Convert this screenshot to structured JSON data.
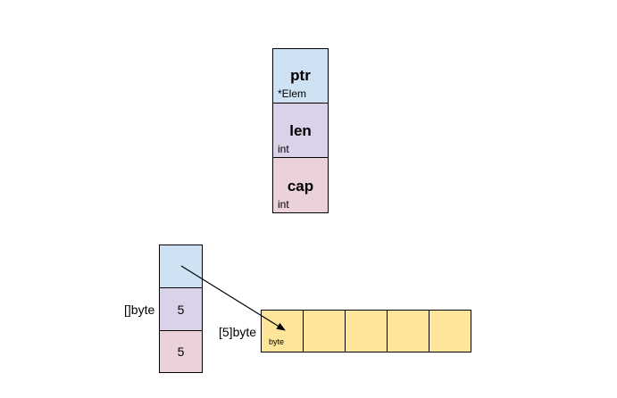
{
  "colors": {
    "ptr_fill": "#cfe2f3",
    "len_fill": "#d9d2e9",
    "cap_fill": "#ead1dc",
    "array_fill": "#ffe599",
    "stroke": "#000000"
  },
  "slice_header": {
    "ptr": {
      "name": "ptr",
      "type": "*Elem"
    },
    "len": {
      "name": "len",
      "type": "int"
    },
    "cap": {
      "name": "cap",
      "type": "int"
    }
  },
  "byte_slice": {
    "label": "[]byte",
    "len_value": "5",
    "cap_value": "5"
  },
  "byte_array": {
    "label": "[5]byte",
    "element_label": "byte",
    "element_count": 5
  }
}
